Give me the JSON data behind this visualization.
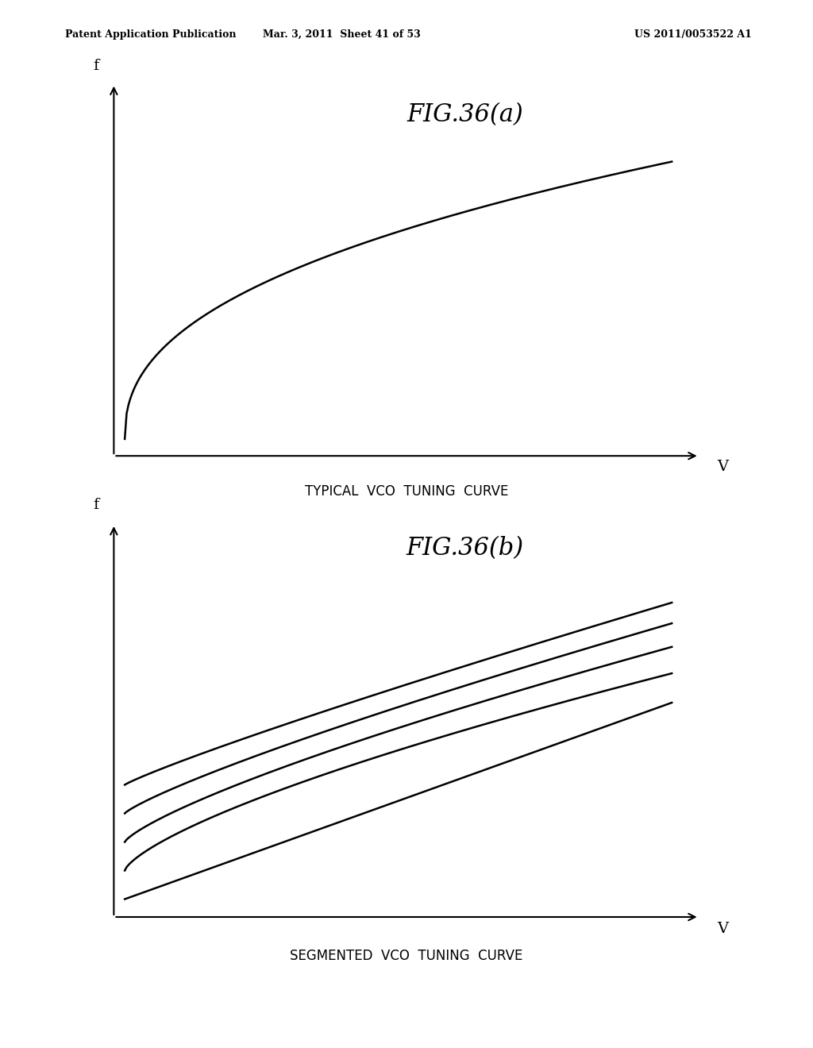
{
  "background_color": "#ffffff",
  "header_left": "Patent Application Publication",
  "header_mid": "Mar. 3, 2011  Sheet 41 of 53",
  "header_right": "US 2011/0053522 A1",
  "fig_a_title": "FIG.36(a)",
  "fig_a_xlabel": "V",
  "fig_a_ylabel": "f",
  "fig_a_caption": "TYPICAL  VCO  TUNING  CURVE",
  "fig_b_title": "FIG.36(b)",
  "fig_b_xlabel": "V",
  "fig_b_ylabel": "f",
  "fig_b_caption": "SEGMENTED  VCO  TUNING  CURVE",
  "line_color": "#000000",
  "line_width": 1.8,
  "axis_color": "#000000",
  "text_color": "#000000",
  "num_segments": 5,
  "segment_offsets": [
    0.0,
    0.08,
    0.16,
    0.24,
    0.32
  ]
}
